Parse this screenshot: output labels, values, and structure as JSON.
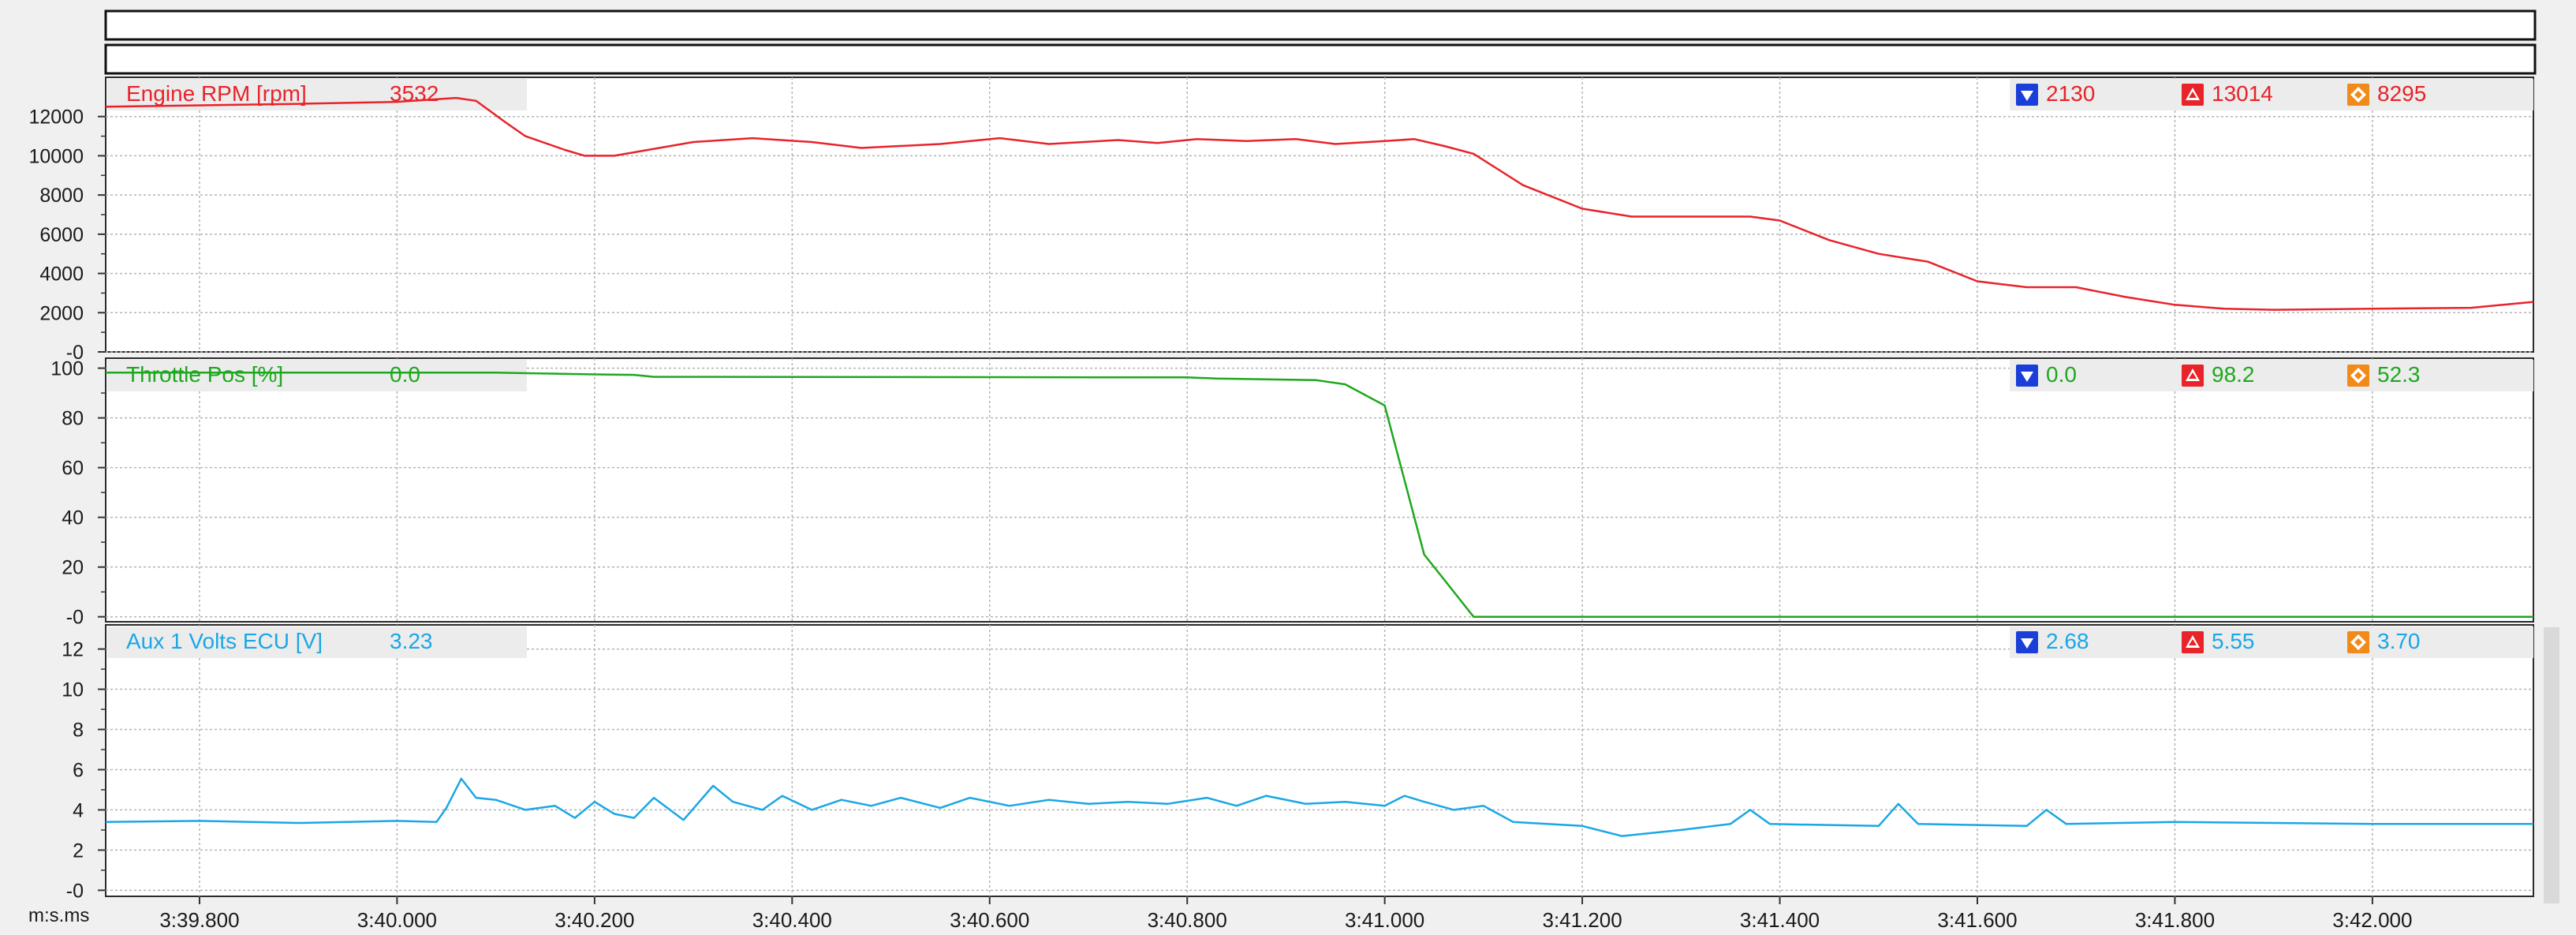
{
  "chart_data": {
    "type": "line",
    "x_axis": {
      "label": "m:s.ms",
      "range_s": [
        219.705,
        222.163
      ],
      "ticks": [
        {
          "t": 219.8,
          "label": "3:39.800"
        },
        {
          "t": 220.0,
          "label": "3:40.000"
        },
        {
          "t": 220.2,
          "label": "3:40.200"
        },
        {
          "t": 220.4,
          "label": "3:40.400"
        },
        {
          "t": 220.6,
          "label": "3:40.600"
        },
        {
          "t": 220.8,
          "label": "3:40.800"
        },
        {
          "t": 221.0,
          "label": "3:41.000"
        },
        {
          "t": 221.2,
          "label": "3:41.200"
        },
        {
          "t": 221.4,
          "label": "3:41.400"
        },
        {
          "t": 221.6,
          "label": "3:41.600"
        },
        {
          "t": 221.8,
          "label": "3:41.800"
        },
        {
          "t": 222.0,
          "label": "3:42.000"
        }
      ]
    },
    "panels": [
      {
        "name": "Engine RPM [rpm]",
        "cursor_value": "3532",
        "min": "2130",
        "max": "13014",
        "avg": "8295",
        "color": "#e8232a",
        "ylim": [
          0,
          14000
        ],
        "yticks": [
          {
            "v": 12000,
            "label": "12000"
          },
          {
            "v": 10000,
            "label": "10000"
          },
          {
            "v": 8000,
            "label": "8000"
          },
          {
            "v": 6000,
            "label": "6000"
          },
          {
            "v": 4000,
            "label": "4000"
          },
          {
            "v": 2000,
            "label": "2000"
          },
          {
            "v": 0,
            "label": "-0"
          }
        ],
        "points": [
          [
            219.705,
            12500
          ],
          [
            219.9,
            12650
          ],
          [
            220.0,
            12750
          ],
          [
            220.06,
            12950
          ],
          [
            220.08,
            12800
          ],
          [
            220.11,
            11700
          ],
          [
            220.13,
            11000
          ],
          [
            220.17,
            10300
          ],
          [
            220.19,
            10000
          ],
          [
            220.22,
            10000
          ],
          [
            220.3,
            10700
          ],
          [
            220.36,
            10900
          ],
          [
            220.42,
            10700
          ],
          [
            220.47,
            10400
          ],
          [
            220.55,
            10600
          ],
          [
            220.61,
            10900
          ],
          [
            220.66,
            10600
          ],
          [
            220.73,
            10800
          ],
          [
            220.77,
            10650
          ],
          [
            220.81,
            10850
          ],
          [
            220.86,
            10750
          ],
          [
            220.91,
            10850
          ],
          [
            220.95,
            10600
          ],
          [
            221.0,
            10750
          ],
          [
            221.03,
            10850
          ],
          [
            221.06,
            10500
          ],
          [
            221.09,
            10100
          ],
          [
            221.14,
            8500
          ],
          [
            221.2,
            7300
          ],
          [
            221.25,
            6900
          ],
          [
            221.3,
            6900
          ],
          [
            221.37,
            6900
          ],
          [
            221.4,
            6700
          ],
          [
            221.45,
            5700
          ],
          [
            221.5,
            5000
          ],
          [
            221.55,
            4600
          ],
          [
            221.6,
            3600
          ],
          [
            221.65,
            3300
          ],
          [
            221.7,
            3300
          ],
          [
            221.75,
            2800
          ],
          [
            221.8,
            2400
          ],
          [
            221.85,
            2200
          ],
          [
            221.9,
            2150
          ],
          [
            222.0,
            2200
          ],
          [
            222.1,
            2250
          ],
          [
            222.163,
            2550
          ]
        ]
      },
      {
        "name": "Throttle Pos [%]",
        "cursor_value": "0.0",
        "min": "0.0",
        "max": "98.2",
        "avg": "52.3",
        "color": "#1ea81e",
        "ylim": [
          -2,
          104
        ],
        "yticks": [
          {
            "v": 100,
            "label": "100"
          },
          {
            "v": 80,
            "label": "80"
          },
          {
            "v": 60,
            "label": "60"
          },
          {
            "v": 40,
            "label": "40"
          },
          {
            "v": 20,
            "label": "20"
          },
          {
            "v": 0,
            "label": "-0"
          }
        ],
        "points": [
          [
            219.705,
            98.2
          ],
          [
            220.1,
            98.2
          ],
          [
            220.2,
            97.5
          ],
          [
            220.24,
            97.3
          ],
          [
            220.26,
            96.5
          ],
          [
            220.8,
            96.3
          ],
          [
            220.83,
            95.8
          ],
          [
            220.93,
            95.2
          ],
          [
            220.96,
            93.5
          ],
          [
            221.0,
            85
          ],
          [
            221.04,
            25
          ],
          [
            221.06,
            15
          ],
          [
            221.09,
            0
          ],
          [
            222.163,
            0
          ]
        ]
      },
      {
        "name": "Aux 1 Volts ECU [V]",
        "cursor_value": "3.23",
        "min": "2.68",
        "max": "5.55",
        "avg": "3.70",
        "color": "#1aa7e6",
        "ylim": [
          -0.3,
          13.2
        ],
        "yticks": [
          {
            "v": 12,
            "label": "12"
          },
          {
            "v": 10,
            "label": "10"
          },
          {
            "v": 8,
            "label": "8"
          },
          {
            "v": 6,
            "label": "6"
          },
          {
            "v": 4,
            "label": "4"
          },
          {
            "v": 2,
            "label": "2"
          },
          {
            "v": 0,
            "label": "-0"
          }
        ],
        "points": [
          [
            219.705,
            3.4
          ],
          [
            219.8,
            3.45
          ],
          [
            219.9,
            3.35
          ],
          [
            220.0,
            3.45
          ],
          [
            220.04,
            3.4
          ],
          [
            220.05,
            4.1
          ],
          [
            220.065,
            5.55
          ],
          [
            220.08,
            4.6
          ],
          [
            220.1,
            4.5
          ],
          [
            220.13,
            4.0
          ],
          [
            220.16,
            4.2
          ],
          [
            220.18,
            3.6
          ],
          [
            220.2,
            4.4
          ],
          [
            220.22,
            3.8
          ],
          [
            220.24,
            3.6
          ],
          [
            220.26,
            4.6
          ],
          [
            220.29,
            3.5
          ],
          [
            220.32,
            5.2
          ],
          [
            220.34,
            4.4
          ],
          [
            220.37,
            4.0
          ],
          [
            220.39,
            4.7
          ],
          [
            220.42,
            4.0
          ],
          [
            220.45,
            4.5
          ],
          [
            220.48,
            4.2
          ],
          [
            220.51,
            4.6
          ],
          [
            220.55,
            4.1
          ],
          [
            220.58,
            4.6
          ],
          [
            220.62,
            4.2
          ],
          [
            220.66,
            4.5
          ],
          [
            220.7,
            4.3
          ],
          [
            220.74,
            4.4
          ],
          [
            220.78,
            4.3
          ],
          [
            220.82,
            4.6
          ],
          [
            220.85,
            4.2
          ],
          [
            220.88,
            4.7
          ],
          [
            220.92,
            4.3
          ],
          [
            220.96,
            4.4
          ],
          [
            221.0,
            4.2
          ],
          [
            221.02,
            4.7
          ],
          [
            221.04,
            4.4
          ],
          [
            221.07,
            4.0
          ],
          [
            221.1,
            4.2
          ],
          [
            221.13,
            3.4
          ],
          [
            221.2,
            3.2
          ],
          [
            221.24,
            2.7
          ],
          [
            221.3,
            3.0
          ],
          [
            221.35,
            3.3
          ],
          [
            221.37,
            4.0
          ],
          [
            221.39,
            3.3
          ],
          [
            221.5,
            3.2
          ],
          [
            221.52,
            4.3
          ],
          [
            221.54,
            3.3
          ],
          [
            221.65,
            3.2
          ],
          [
            221.67,
            4.0
          ],
          [
            221.69,
            3.3
          ],
          [
            221.8,
            3.4
          ],
          [
            222.0,
            3.3
          ],
          [
            222.163,
            3.3
          ]
        ]
      }
    ]
  }
}
